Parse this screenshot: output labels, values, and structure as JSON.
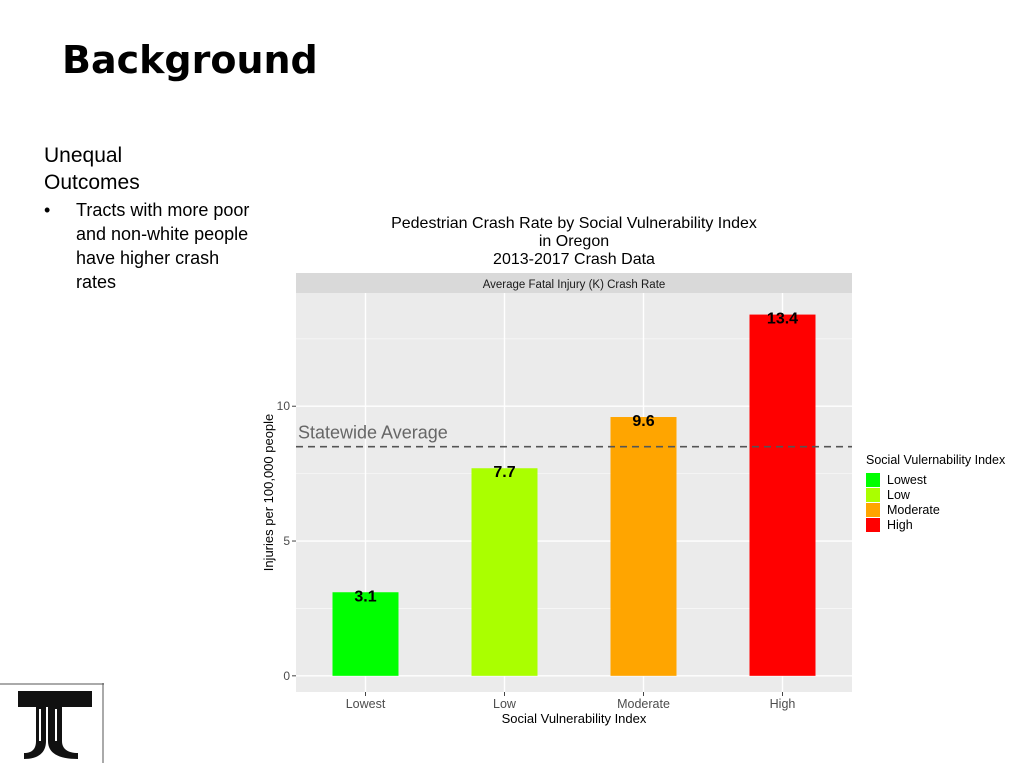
{
  "slide": {
    "title": "Background",
    "heading_line1": "Unequal",
    "heading_line2": "Outcomes",
    "bullet_marker": "•",
    "bullet": "Tracts with more poor and non-white people have higher crash rates"
  },
  "chart_data": {
    "type": "bar",
    "title_lines": [
      "Pedestrian Crash Rate by Social Vulnerability Index",
      "in Oregon",
      "2013-2017 Crash Data"
    ],
    "panel_label": "Average Fatal Injury (K) Crash Rate",
    "categories": [
      "Lowest",
      "Low",
      "Moderate",
      "High"
    ],
    "values": [
      3.1,
      7.7,
      9.6,
      13.4
    ],
    "value_labels": [
      "3.1",
      "7.7",
      "9.6",
      "13.4"
    ],
    "colors": [
      "#00ff00",
      "#aaff00",
      "#ffa500",
      "#ff0000"
    ],
    "xlabel": "Social Vulnerability Index",
    "ylabel": "Injuries per 100,000 people",
    "yticks": [
      0,
      5,
      10
    ],
    "ylim": [
      -0.6,
      14.2
    ],
    "reference_line": {
      "value": 8.5,
      "label": "Statewide Average",
      "style": "dashed"
    },
    "legend": {
      "title": "Social Vulernability Index",
      "items": [
        "Lowest",
        "Low",
        "Moderate",
        "High"
      ],
      "placement": "right"
    },
    "grid": true
  }
}
